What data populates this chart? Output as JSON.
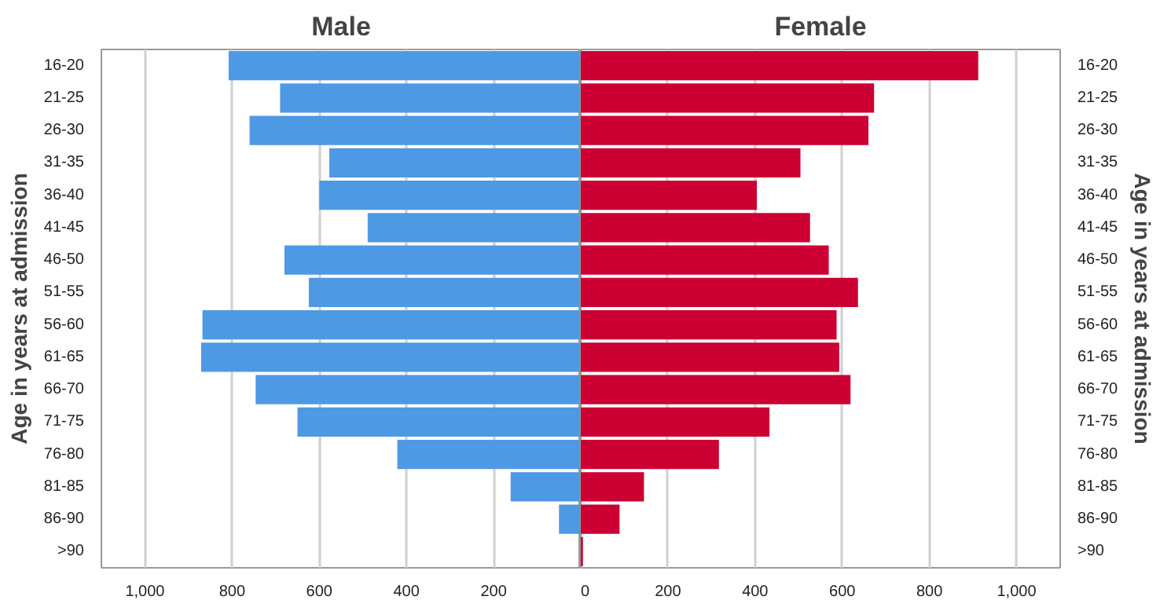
{
  "chart_data": [
    {
      "type": "bar",
      "orientation": "horizontal",
      "title": "Male",
      "ylabel": "Age in years at admission",
      "categories": [
        "16-20",
        "21-25",
        "26-30",
        "31-35",
        "36-40",
        "41-45",
        "46-50",
        "51-55",
        "56-60",
        "61-65",
        "66-70",
        "71-75",
        "76-80",
        "81-85",
        "86-90",
        ">90"
      ],
      "values": [
        808,
        690,
        760,
        577,
        600,
        489,
        680,
        624,
        868,
        871,
        746,
        650,
        421,
        161,
        50,
        null
      ],
      "color": "#4e99e3",
      "xlim": [
        1100,
        0
      ],
      "xticks": [
        200,
        400,
        600,
        800,
        {
          "value": 1000,
          "label": "1,000"
        }
      ],
      "grid": "x"
    },
    {
      "type": "bar",
      "orientation": "horizontal",
      "title": "Female",
      "ylabel": "Age in years at admission",
      "categories": [
        "16-20",
        "21-25",
        "26-30",
        "31-35",
        "36-40",
        "41-45",
        "46-50",
        "51-55",
        "56-60",
        "61-65",
        "66-70",
        "71-75",
        "76-80",
        "81-85",
        "86-90",
        ">90"
      ],
      "values": [
        912,
        673,
        660,
        504,
        404,
        526,
        569,
        636,
        587,
        593,
        619,
        433,
        317,
        145,
        89,
        5
      ],
      "color": "#cc0033",
      "xlim": [
        0,
        1100
      ],
      "xticks": [
        0,
        200,
        400,
        600,
        800,
        {
          "value": 1000,
          "label": "1,000"
        }
      ],
      "grid": "x"
    }
  ]
}
